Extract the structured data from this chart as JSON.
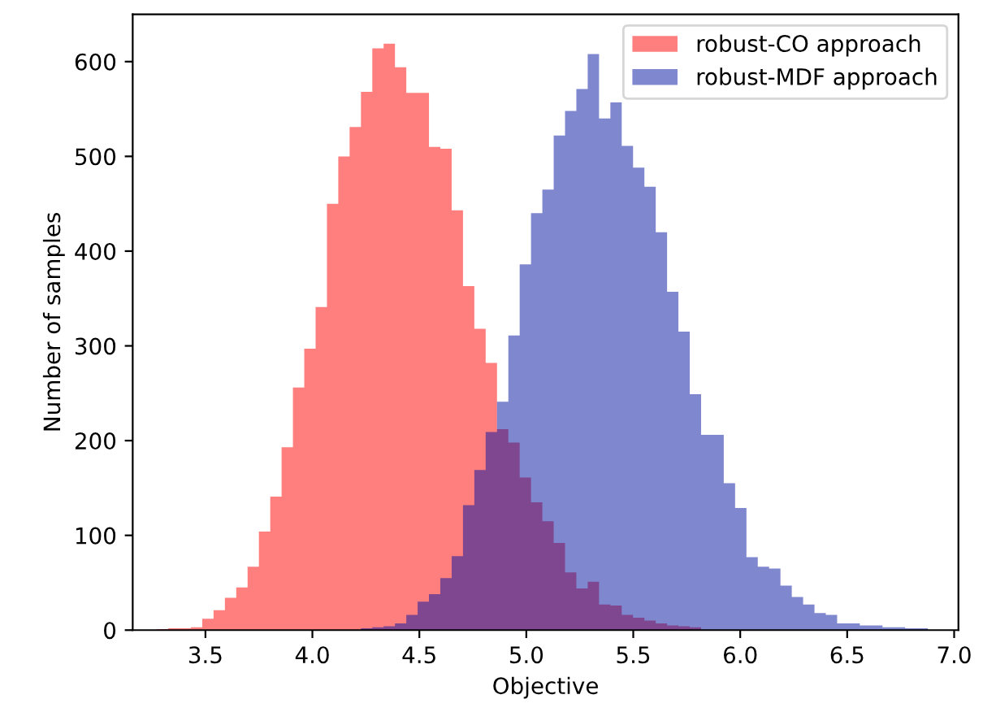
{
  "chart_data": {
    "type": "histogram",
    "xlabel": "Objective",
    "ylabel": "Number of samples",
    "xlim": [
      3.16,
      7.02
    ],
    "ylim": [
      0,
      650
    ],
    "xticks": [
      {
        "value": 3.5,
        "label": "3.5"
      },
      {
        "value": 4.0,
        "label": "4.0"
      },
      {
        "value": 4.5,
        "label": "4.5"
      },
      {
        "value": 5.0,
        "label": "5.0"
      },
      {
        "value": 5.5,
        "label": "5.5"
      },
      {
        "value": 6.0,
        "label": "6.0"
      },
      {
        "value": 6.5,
        "label": "6.5"
      },
      {
        "value": 7.0,
        "label": "7.0"
      }
    ],
    "yticks": [
      0,
      100,
      200,
      300,
      400,
      500,
      600
    ],
    "legend": "top right",
    "bins": [
      3.273,
      3.326,
      3.379,
      3.432,
      3.485,
      3.538,
      3.591,
      3.644,
      3.697,
      3.75,
      3.803,
      3.856,
      3.909,
      3.962,
      4.015,
      4.068,
      4.121,
      4.174,
      4.227,
      4.28,
      4.333,
      4.386,
      4.439,
      4.492,
      4.545,
      4.598,
      4.651,
      4.704,
      4.757,
      4.81,
      4.863,
      4.916,
      4.969,
      5.022,
      5.075,
      5.128,
      5.181,
      5.234,
      5.287,
      5.34,
      5.393,
      5.446,
      5.499,
      5.552,
      5.605,
      5.658,
      5.711,
      5.764,
      5.817,
      5.87,
      5.923,
      5.976,
      6.029,
      6.082,
      6.135,
      6.188,
      6.241,
      6.294,
      6.347,
      6.4,
      6.453,
      6.506,
      6.559,
      6.612,
      6.665,
      6.718,
      6.771,
      6.824,
      6.877
    ],
    "series": [
      {
        "name": "robust-CO approach",
        "color": "#ff0000",
        "values": [
          1,
          2,
          2,
          3,
          12,
          21,
          34,
          45,
          67,
          104,
          141,
          193,
          256,
          297,
          341,
          450,
          500,
          531,
          568,
          614,
          619,
          594,
          567,
          567,
          510,
          508,
          443,
          363,
          318,
          282,
          212,
          198,
          161,
          135,
          115,
          92,
          61,
          44,
          51,
          27,
          26,
          16,
          13,
          10,
          7,
          5,
          4,
          3,
          0,
          0,
          0,
          0,
          0,
          0,
          0,
          0,
          0,
          0,
          0,
          0,
          0,
          0,
          0,
          0,
          0,
          0,
          0,
          0
        ]
      },
      {
        "name": "robust-MDF approach",
        "color": "#0010a0",
        "values": [
          0,
          0,
          0,
          0,
          0,
          0,
          0,
          0,
          0,
          0,
          0,
          0,
          0,
          0,
          0,
          0,
          0,
          0,
          2,
          3,
          4,
          7,
          16,
          30,
          38,
          55,
          78,
          132,
          169,
          209,
          241,
          311,
          386,
          440,
          465,
          522,
          548,
          571,
          608,
          540,
          557,
          511,
          488,
          468,
          420,
          357,
          315,
          249,
          206,
          206,
          155,
          129,
          77,
          67,
          65,
          47,
          35,
          27,
          18,
          16,
          7,
          7,
          5,
          5,
          3,
          3,
          2,
          2
        ]
      }
    ]
  }
}
